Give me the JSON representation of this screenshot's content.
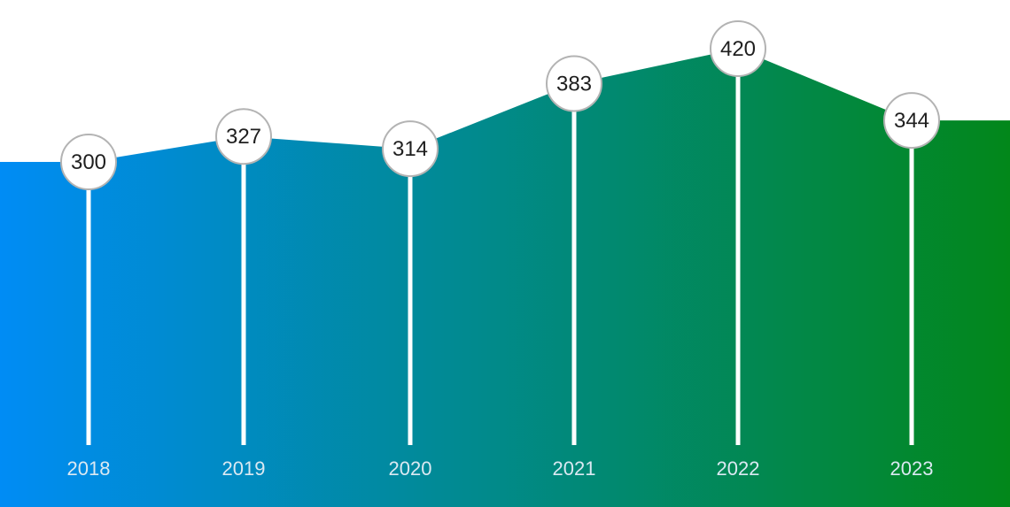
{
  "chart_data": {
    "type": "area",
    "categories": [
      "2018",
      "2019",
      "2020",
      "2021",
      "2022",
      "2023"
    ],
    "values": [
      300,
      327,
      314,
      383,
      420,
      344
    ],
    "title": "",
    "xlabel": "",
    "ylabel": "",
    "grid": false,
    "legend": "none",
    "gradient": {
      "start": "#008cf5",
      "end": "#02871a"
    },
    "colors": {
      "stem": "#ffffff",
      "marker_fill": "#ffffff",
      "marker_stroke": "#b3b3b3",
      "value_text": "#1f1f1f",
      "year_text": "#dbe9f2"
    }
  }
}
